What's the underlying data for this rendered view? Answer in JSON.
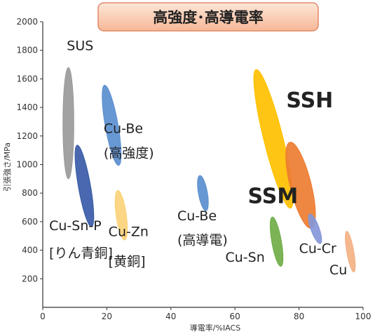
{
  "chart_data": {
    "type": "scatter",
    "title": "高強度･高導電率",
    "xlabel": "導電率/%IACS",
    "ylabel": "引張強さ/MPa",
    "xlim": [
      0,
      100
    ],
    "ylim": [
      0,
      2000
    ],
    "xticks": [
      "0",
      "20",
      "40",
      "60",
      "80",
      "100"
    ],
    "yticks": [
      "200",
      "400",
      "600",
      "800",
      "1000",
      "1200",
      "1400",
      "1600",
      "1800",
      "2000"
    ],
    "grid": false,
    "regions": [
      {
        "name": "SUS",
        "cx": 8,
        "cy": 1290,
        "rx": 1.7,
        "ry": 390,
        "angle": 0,
        "color": "#9a9a9a"
      },
      {
        "name": "Cu-Sn-P",
        "cx": 13,
        "cy": 850,
        "rx": 1.9,
        "ry": 290,
        "angle": 10,
        "color": "#3a5ba8"
      },
      {
        "name": "Cu-Be (高強度)",
        "cx": 21.5,
        "cy": 1275,
        "rx": 2.0,
        "ry": 285,
        "angle": 10,
        "color": "#5b8fd0"
      },
      {
        "name": "Cu-Zn",
        "cx": 24.5,
        "cy": 645,
        "rx": 1.6,
        "ry": 175,
        "angle": 8,
        "color": "#fbd27a"
      },
      {
        "name": "Cu-Be (高導電)",
        "cx": 50,
        "cy": 800,
        "rx": 1.4,
        "ry": 125,
        "angle": 10,
        "color": "#5b8fd0"
      },
      {
        "name": "SSH",
        "cx": 72,
        "cy": 1180,
        "rx": 3.0,
        "ry": 500,
        "angle": 14,
        "color": "#ffc000"
      },
      {
        "name": "SSM",
        "cx": 80.5,
        "cy": 855,
        "rx": 3.3,
        "ry": 310,
        "angle": 14,
        "color": "#ed7d31"
      },
      {
        "name": "Cu-Sn",
        "cx": 73,
        "cy": 460,
        "rx": 1.5,
        "ry": 175,
        "angle": 10,
        "color": "#70ad47"
      },
      {
        "name": "Cu-Cr",
        "cx": 85,
        "cy": 550,
        "rx": 1.3,
        "ry": 110,
        "angle": 20,
        "color": "#8497d8"
      },
      {
        "name": "Cu",
        "cx": 96,
        "cy": 390,
        "rx": 1.1,
        "ry": 145,
        "angle": 10,
        "color": "#f4b183"
      }
    ],
    "labels": [
      {
        "text": "SUS",
        "x": 7.5,
        "y": 1800,
        "color": "#222222"
      },
      {
        "text": "Cu-Be",
        "x": 19,
        "y": 1220,
        "color": "#222222"
      },
      {
        "text": "(高強度)",
        "x": 19,
        "y": 1050,
        "color": "#222222"
      },
      {
        "text": "Cu-Sn-P",
        "x": 2,
        "y": 540,
        "color": "#222222"
      },
      {
        "text": "[りん青銅]",
        "x": 2,
        "y": 350,
        "color": "#222222"
      },
      {
        "text": "Cu-Zn",
        "x": 20.5,
        "y": 500,
        "color": "#222222"
      },
      {
        "text": "[黄銅]",
        "x": 20.5,
        "y": 290,
        "color": "#222222"
      },
      {
        "text": "Cu-Be",
        "x": 42,
        "y": 610,
        "color": "#222222"
      },
      {
        "text": "(高導電)",
        "x": 42,
        "y": 440,
        "color": "#222222"
      },
      {
        "text": "SSH",
        "x": 76,
        "y": 1400,
        "color": "#e8262a"
      },
      {
        "text": "SSM",
        "x": 64,
        "y": 730,
        "color": "#e8262a"
      },
      {
        "text": "Cu-Sn",
        "x": 57,
        "y": 320,
        "color": "#222222"
      },
      {
        "text": "Cu-Cr",
        "x": 80,
        "y": 380,
        "color": "#222222"
      },
      {
        "text": "Cu",
        "x": 89.5,
        "y": 230,
        "color": "#222222"
      }
    ],
    "title_bg": "#f9c5a8",
    "title_border": "#e08a68"
  }
}
